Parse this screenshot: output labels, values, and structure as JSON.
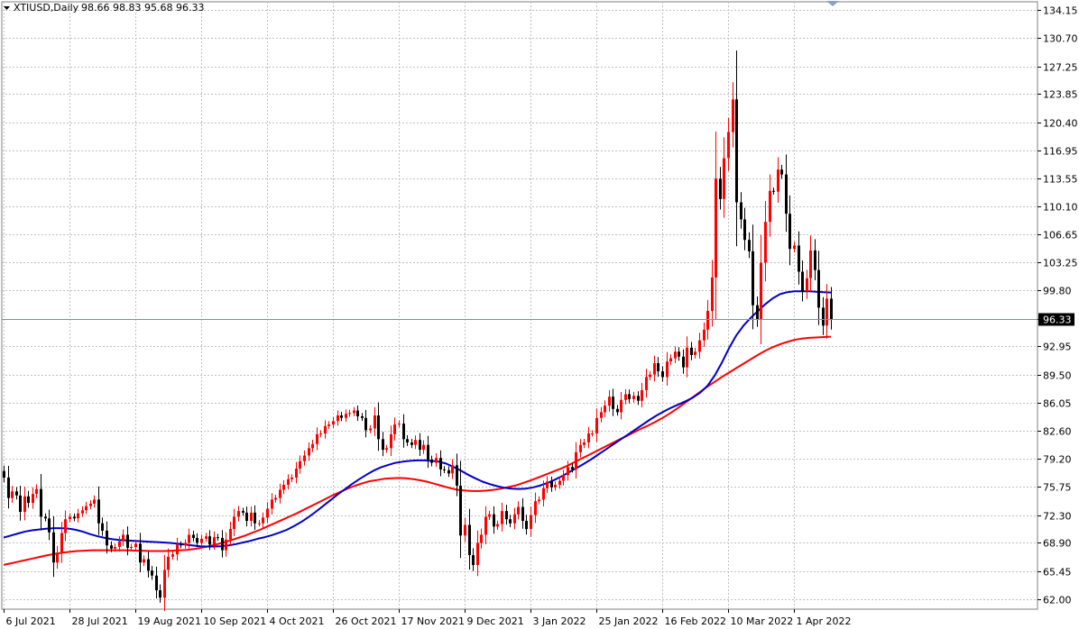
{
  "chart_data": {
    "type": "candlestick",
    "title": "XTIUSD,Daily",
    "ohlc_label": "98.66 98.83 95.68 96.33",
    "symbol": "XTIUSD",
    "timeframe": "Daily",
    "ylim": [
      62.0,
      134.15
    ],
    "y_ticks": [
      "134.15",
      "130.70",
      "127.25",
      "123.85",
      "120.40",
      "116.95",
      "113.55",
      "110.10",
      "106.65",
      "103.25",
      "99.80",
      "96.33",
      "92.95",
      "89.50",
      "86.05",
      "82.60",
      "79.20",
      "75.75",
      "72.30",
      "68.90",
      "65.45",
      "62.00"
    ],
    "x_labels": [
      "6 Jul 2021",
      "28 Jul 2021",
      "19 Aug 2021",
      "10 Sep 2021",
      "4 Oct 2021",
      "26 Oct 2021",
      "17 Nov 2021",
      "9 Dec 2021",
      "3 Jan 2022",
      "25 Jan 2022",
      "16 Feb 2022",
      "10 Mar 2022",
      "1 Apr 2022"
    ],
    "current_price": 96.33,
    "grid": true,
    "colors": {
      "bull": "#ff0000",
      "bear": "#000000",
      "ma_fast": "#0000c8",
      "ma_slow": "#ff0000",
      "price_line": "#7a8fb3",
      "grid": "#c0c0c0"
    },
    "closes": [
      76.9,
      74.4,
      75.2,
      74.7,
      72.7,
      74.6,
      73.8,
      74.9,
      75.5,
      72.1,
      71.9,
      70.2,
      66.5,
      67.7,
      70.1,
      71.8,
      72.1,
      71.9,
      72.5,
      72.9,
      73.4,
      73.7,
      74.2,
      71.3,
      70.4,
      68.6,
      68.2,
      68.4,
      69.1,
      69.9,
      68.3,
      68.4,
      68.8,
      66.5,
      66.9,
      65.5,
      64.9,
      63.1,
      62.2,
      65.6,
      67.2,
      67.5,
      68.7,
      68.6,
      68.9,
      69.9,
      69.5,
      68.9,
      69.4,
      69.7,
      68.7,
      69.6,
      69.5,
      68.0,
      69.3,
      70.6,
      72.1,
      72.8,
      72.6,
      71.6,
      72.6,
      71.3,
      71.3,
      72.0,
      73.1,
      74.2,
      74.4,
      75.4,
      76.0,
      76.7,
      76.9,
      78.0,
      78.9,
      79.6,
      80.5,
      81.0,
      82.2,
      82.3,
      83.2,
      83.4,
      83.8,
      84.5,
      84.2,
      84.7,
      84.8,
      85.1,
      84.4,
      84.2,
      82.7,
      82.9,
      84.5,
      81.6,
      80.3,
      80.5,
      82.2,
      83.4,
      83.5,
      81.6,
      81.2,
      80.9,
      81.5,
      80.3,
      80.9,
      79.1,
      78.7,
      79.3,
      77.9,
      77.8,
      77.4,
      78.4,
      75.9,
      69.8,
      71.1,
      67.4,
      66.2,
      68.9,
      69.9,
      72.1,
      72.4,
      70.9,
      71.2,
      72.8,
      71.8,
      71.3,
      72.4,
      73.3,
      71.6,
      70.6,
      72.3,
      74.0,
      74.2,
      75.6,
      76.4,
      75.7,
      76.0,
      76.5,
      77.2,
      78.2,
      77.9,
      80.0,
      80.9,
      81.2,
      82.3,
      82.3,
      84.2,
      84.9,
      85.7,
      86.8,
      85.3,
      84.9,
      86.4,
      87.1,
      86.5,
      86.9,
      86.3,
      87.6,
      89.2,
      89.5,
      90.9,
      89.9,
      89.2,
      91.1,
      91.5,
      92.3,
      91.7,
      90.4,
      92.8,
      91.9,
      92.3,
      93.7,
      95.0,
      97.3,
      101.4,
      113.5,
      111.0,
      116.0,
      119.2,
      123.2,
      110.6,
      108.5,
      106.0,
      104.6,
      98.0,
      96.3,
      103.2,
      108.2,
      112.0,
      111.9,
      114.6,
      114.0,
      109.2,
      104.9,
      105.3,
      102.1,
      99.7,
      101.3,
      104.7,
      102.3,
      97.7,
      95.5,
      98.8,
      96.3
    ],
    "ma_fast": [
      69.55,
      69.8,
      70.05,
      70.3,
      70.45,
      70.55,
      70.65,
      70.7,
      70.7,
      70.65,
      70.5,
      70.25,
      69.95,
      69.7,
      69.5,
      69.35,
      69.25,
      69.2,
      69.15,
      69.1,
      69.05,
      69.0,
      68.95,
      68.9,
      68.8,
      68.7,
      68.6,
      68.5,
      68.45,
      68.45,
      68.5,
      68.6,
      68.75,
      68.95,
      69.15,
      69.4,
      69.6,
      69.85,
      70.15,
      70.5,
      70.95,
      71.45,
      72.05,
      72.7,
      73.4,
      74.1,
      74.8,
      75.45,
      76.1,
      76.7,
      77.25,
      77.75,
      78.15,
      78.45,
      78.7,
      78.85,
      78.95,
      79.0,
      79.0,
      78.95,
      78.85,
      78.6,
      78.2,
      77.75,
      77.25,
      76.8,
      76.4,
      76.1,
      75.85,
      75.65,
      75.55,
      75.5,
      75.55,
      75.7,
      75.95,
      76.25,
      76.65,
      77.1,
      77.6,
      78.1,
      78.6,
      79.15,
      79.75,
      80.35,
      80.95,
      81.55,
      82.15,
      82.75,
      83.35,
      83.95,
      84.5,
      85.0,
      85.45,
      85.85,
      86.25,
      86.7,
      87.3,
      88.15,
      89.4,
      91.0,
      92.8,
      94.35,
      95.55,
      96.5,
      97.35,
      98.15,
      98.85,
      99.35,
      99.6,
      99.7,
      99.7,
      99.7,
      99.65,
      99.6,
      99.55
    ],
    "ma_slow": [
      66.2,
      66.4,
      66.6,
      66.8,
      67.0,
      67.2,
      67.4,
      67.55,
      67.7,
      67.8,
      67.9,
      67.95,
      68.0,
      68.0,
      68.0,
      68.0,
      68.0,
      68.0,
      67.95,
      67.95,
      67.9,
      67.9,
      67.9,
      67.95,
      68.0,
      68.05,
      68.15,
      68.3,
      68.5,
      68.7,
      68.95,
      69.2,
      69.5,
      69.8,
      70.15,
      70.5,
      70.9,
      71.3,
      71.7,
      72.1,
      72.5,
      72.95,
      73.4,
      73.85,
      74.3,
      74.75,
      75.15,
      75.55,
      75.9,
      76.2,
      76.45,
      76.6,
      76.75,
      76.8,
      76.85,
      76.8,
      76.7,
      76.55,
      76.35,
      76.1,
      75.85,
      75.6,
      75.4,
      75.3,
      75.25,
      75.25,
      75.3,
      75.4,
      75.55,
      75.75,
      75.95,
      76.25,
      76.55,
      76.9,
      77.25,
      77.6,
      77.95,
      78.35,
      78.8,
      79.25,
      79.7,
      80.15,
      80.6,
      81.05,
      81.5,
      81.95,
      82.4,
      82.85,
      83.25,
      83.7,
      84.2,
      84.75,
      85.35,
      86.0,
      86.65,
      87.3,
      87.95,
      88.55,
      89.15,
      89.7,
      90.25,
      90.8,
      91.35,
      91.9,
      92.4,
      92.85,
      93.2,
      93.5,
      93.75,
      93.9,
      94.0,
      94.05,
      94.1,
      94.15
    ]
  }
}
